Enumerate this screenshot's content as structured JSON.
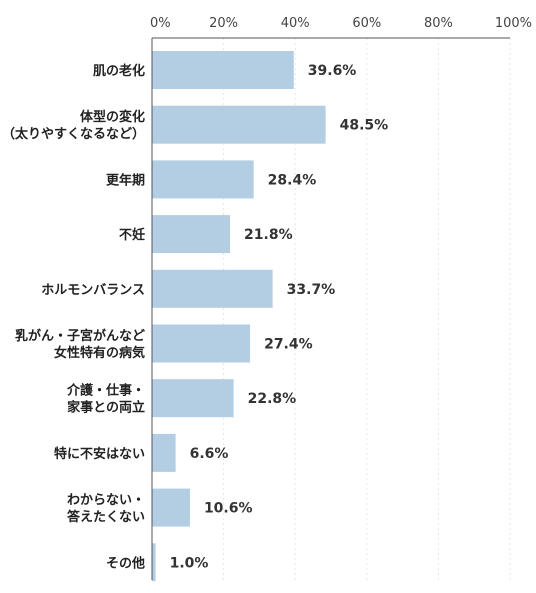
{
  "chart_data": {
    "type": "bar",
    "orientation": "horizontal",
    "categories": [
      [
        "肌の老化"
      ],
      [
        "体型の変化",
        "（太りやすくなるなど）"
      ],
      [
        "更年期"
      ],
      [
        "不妊"
      ],
      [
        "ホルモンバランス"
      ],
      [
        "乳がん・子宮がんなど",
        "女性特有の病気"
      ],
      [
        "介護・仕事・",
        "家事との両立"
      ],
      [
        "特に不安はない"
      ],
      [
        "わからない・",
        "答えたくない"
      ],
      [
        "その他"
      ]
    ],
    "values": [
      39.6,
      48.5,
      28.4,
      21.8,
      33.7,
      27.4,
      22.8,
      6.6,
      10.6,
      1.0
    ],
    "value_labels": [
      "39.6%",
      "48.5%",
      "28.4%",
      "21.8%",
      "33.7%",
      "27.4%",
      "22.8%",
      "6.6%",
      "10.6%",
      "1.0%"
    ],
    "xlim": [
      0,
      100
    ],
    "ticks": [
      0,
      20,
      40,
      60,
      80,
      100
    ],
    "tick_labels": [
      "0%",
      "20%",
      "40%",
      "60%",
      "80%",
      "100%"
    ],
    "axis_position": "top",
    "grid": true,
    "bar_color": "#b3cde3",
    "title": "",
    "xlabel": "",
    "ylabel": ""
  }
}
